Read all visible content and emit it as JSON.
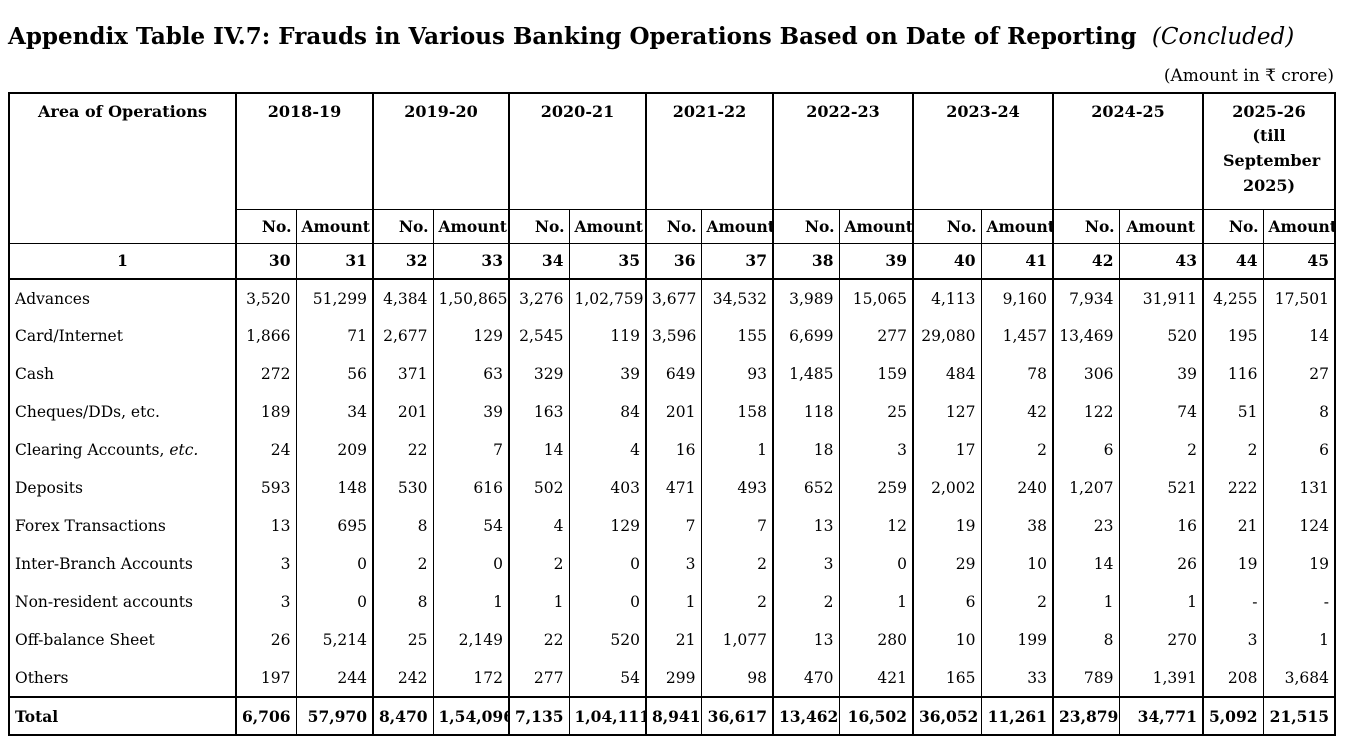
{
  "title": {
    "main": "Appendix Table IV.7: Frauds in Various Banking Operations Based on Date of Reporting",
    "suffix": "(Concluded)"
  },
  "unit_note": "(Amount in ₹ crore)",
  "table": {
    "area_header": "Area of Operations",
    "sub_headers": {
      "no": "No.",
      "amount": "Amount"
    },
    "years": [
      {
        "label": "2018-19",
        "note": ""
      },
      {
        "label": "2019-20",
        "note": ""
      },
      {
        "label": "2020-21",
        "note": ""
      },
      {
        "label": "2021-22",
        "note": ""
      },
      {
        "label": "2022-23",
        "note": ""
      },
      {
        "label": "2023-24",
        "note": ""
      },
      {
        "label": "2024-25",
        "note": ""
      },
      {
        "label": "2025-26",
        "note": "(till September 2025)"
      }
    ],
    "col_nums": [
      "1",
      "30",
      "31",
      "32",
      "33",
      "34",
      "35",
      "36",
      "37",
      "38",
      "39",
      "40",
      "41",
      "42",
      "43",
      "44",
      "45"
    ],
    "rows": [
      {
        "label": "Advances",
        "label_italic": "",
        "values": [
          "3,520",
          "51,299",
          "4,384",
          "1,50,865",
          "3,276",
          "1,02,759",
          "3,677",
          "34,532",
          "3,989",
          "15,065",
          "4,113",
          "9,160",
          "7,934",
          "31,911",
          "4,255",
          "17,501"
        ]
      },
      {
        "label": "Card/Internet",
        "label_italic": "",
        "values": [
          "1,866",
          "71",
          "2,677",
          "129",
          "2,545",
          "119",
          "3,596",
          "155",
          "6,699",
          "277",
          "29,080",
          "1,457",
          "13,469",
          "520",
          "195",
          "14"
        ]
      },
      {
        "label": "Cash",
        "label_italic": "",
        "values": [
          "272",
          "56",
          "371",
          "63",
          "329",
          "39",
          "649",
          "93",
          "1,485",
          "159",
          "484",
          "78",
          "306",
          "39",
          "116",
          "27"
        ]
      },
      {
        "label": "Cheques/DDs, etc.",
        "label_italic": "",
        "values": [
          "189",
          "34",
          "201",
          "39",
          "163",
          "84",
          "201",
          "158",
          "118",
          "25",
          "127",
          "42",
          "122",
          "74",
          "51",
          "8"
        ]
      },
      {
        "label": "Clearing Accounts, ",
        "label_italic": "etc.",
        "values": [
          "24",
          "209",
          "22",
          "7",
          "14",
          "4",
          "16",
          "1",
          "18",
          "3",
          "17",
          "2",
          "6",
          "2",
          "2",
          "6"
        ]
      },
      {
        "label": "Deposits",
        "label_italic": "",
        "values": [
          "593",
          "148",
          "530",
          "616",
          "502",
          "403",
          "471",
          "493",
          "652",
          "259",
          "2,002",
          "240",
          "1,207",
          "521",
          "222",
          "131"
        ]
      },
      {
        "label": "Forex Transactions",
        "label_italic": "",
        "values": [
          "13",
          "695",
          "8",
          "54",
          "4",
          "129",
          "7",
          "7",
          "13",
          "12",
          "19",
          "38",
          "23",
          "16",
          "21",
          "124"
        ]
      },
      {
        "label": "Inter-Branch Accounts",
        "label_italic": "",
        "values": [
          "3",
          "0",
          "2",
          "0",
          "2",
          "0",
          "3",
          "2",
          "3",
          "0",
          "29",
          "10",
          "14",
          "26",
          "19",
          "19"
        ]
      },
      {
        "label": "Non-resident accounts",
        "label_italic": "",
        "values": [
          "3",
          "0",
          "8",
          "1",
          "1",
          "0",
          "1",
          "2",
          "2",
          "1",
          "6",
          "2",
          "1",
          "1",
          "-",
          "-"
        ]
      },
      {
        "label": "Off-balance Sheet",
        "label_italic": "",
        "values": [
          "26",
          "5,214",
          "25",
          "2,149",
          "22",
          "520",
          "21",
          "1,077",
          "13",
          "280",
          "10",
          "199",
          "8",
          "270",
          "3",
          "1"
        ]
      },
      {
        "label": "Others",
        "label_italic": "",
        "values": [
          "197",
          "244",
          "242",
          "172",
          "277",
          "54",
          "299",
          "98",
          "470",
          "421",
          "165",
          "33",
          "789",
          "1,391",
          "208",
          "3,684"
        ]
      }
    ],
    "total_row": {
      "label": "Total",
      "values": [
        "6,706",
        "57,970",
        "8,470",
        "1,54,096",
        "7,135",
        "1,04,111",
        "8,941",
        "36,617",
        "13,462",
        "16,502",
        "36,052",
        "11,261",
        "23,879",
        "34,771",
        "5,092",
        "21,515"
      ]
    }
  }
}
